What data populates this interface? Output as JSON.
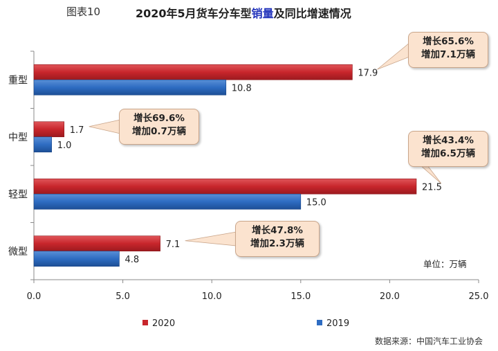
{
  "title": {
    "figure_no": "图表10",
    "main_prefix": "2020年5月货车分车型",
    "main_highlight": "销量",
    "main_suffix": "及同比增速情况"
  },
  "unit_label": "单位：万辆",
  "source": "数据来源：中国汽车工业协会",
  "chart_data": {
    "type": "bar",
    "orientation": "horizontal",
    "categories": [
      "重型",
      "中型",
      "轻型",
      "微型"
    ],
    "series": [
      {
        "name": "2020",
        "values": [
          17.9,
          1.7,
          21.5,
          7.1
        ],
        "color": "#c8262c"
      },
      {
        "name": "2019",
        "values": [
          10.8,
          1.0,
          15.0,
          4.8
        ],
        "color": "#2e6cc2"
      }
    ],
    "xlim": [
      0,
      25
    ],
    "xticks": [
      "0.0",
      "5.0",
      "10.0",
      "15.0",
      "20.0",
      "25.0"
    ],
    "value_labels_2020": [
      "17.9",
      "1.7",
      "21.5",
      "7.1"
    ],
    "value_labels_2019": [
      "10.8",
      "1.0",
      "15.0",
      "4.8"
    ],
    "legend_position": "bottom",
    "grid": false,
    "annotations": [
      {
        "line1": "增长65.6%",
        "line2": "增加7.1万辆",
        "category": "重型"
      },
      {
        "line1": "增长69.6%",
        "line2": "增加0.7万辆",
        "category": "中型"
      },
      {
        "line1": "增长43.4%",
        "line2": "增加6.5万辆",
        "category": "轻型"
      },
      {
        "line1": "增长47.8%",
        "line2": "增加2.3万辆",
        "category": "微型"
      }
    ]
  }
}
